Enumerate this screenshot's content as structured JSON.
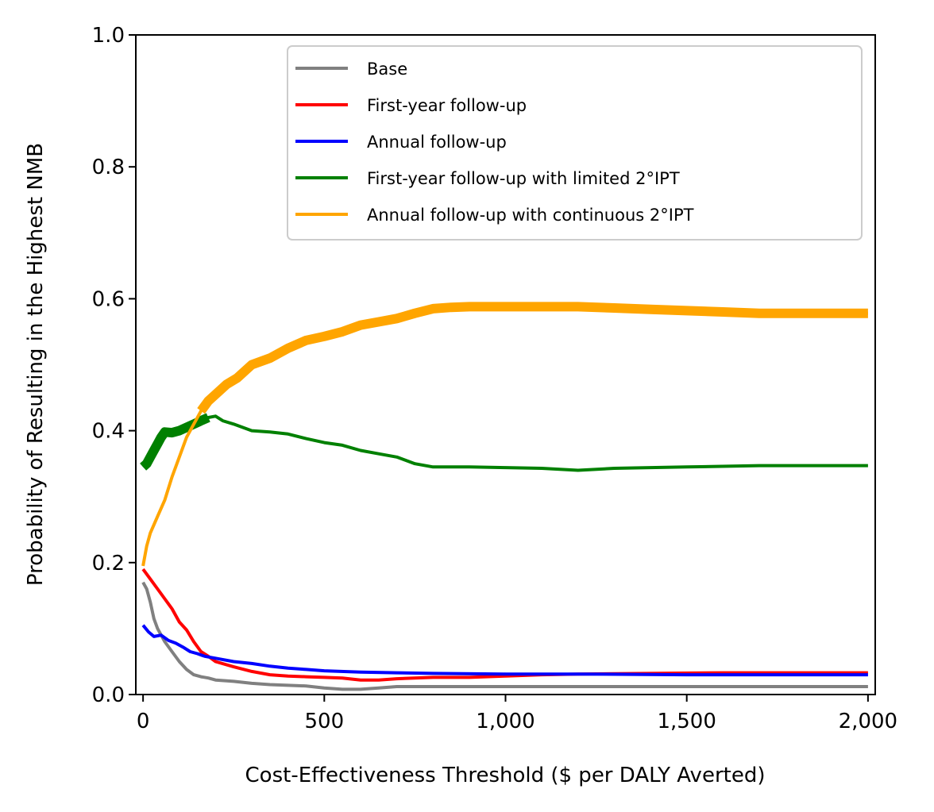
{
  "chart_data": {
    "type": "line",
    "title": "",
    "xlabel": "Cost-Effectiveness Threshold ($ per DALY Averted)",
    "ylabel": "Probability of Resulting in the Highest NMB",
    "xlim": [
      -20,
      2020
    ],
    "ylim": [
      0.0,
      1.0
    ],
    "x_ticks": [
      0,
      500,
      1000,
      1500,
      2000
    ],
    "x_tick_labels": [
      "0",
      "500",
      "1,000",
      "1,500",
      "2,000"
    ],
    "y_ticks": [
      0.0,
      0.2,
      0.4,
      0.6,
      0.8,
      1.0
    ],
    "y_tick_labels": [
      "0.0",
      "0.2",
      "0.4",
      "0.6",
      "0.8",
      "1.0"
    ],
    "grid": false,
    "legend_position": "top-right",
    "series": [
      {
        "name": "Base",
        "color": "#808080",
        "thick_in_range": [],
        "x": [
          0,
          10,
          20,
          30,
          40,
          60,
          80,
          100,
          120,
          140,
          160,
          180,
          200,
          250,
          300,
          350,
          400,
          450,
          500,
          550,
          600,
          650,
          700,
          800,
          1000,
          1200,
          1500,
          1800,
          2000
        ],
        "y": [
          0.17,
          0.16,
          0.14,
          0.115,
          0.1,
          0.08,
          0.065,
          0.05,
          0.038,
          0.03,
          0.027,
          0.025,
          0.022,
          0.02,
          0.017,
          0.015,
          0.014,
          0.013,
          0.01,
          0.008,
          0.008,
          0.01,
          0.012,
          0.012,
          0.012,
          0.012,
          0.012,
          0.012,
          0.012
        ]
      },
      {
        "name": "First-year follow-up",
        "color": "#ff0000",
        "thick_in_range": [],
        "x": [
          0,
          20,
          40,
          60,
          80,
          100,
          120,
          140,
          160,
          180,
          200,
          250,
          300,
          350,
          400,
          450,
          500,
          550,
          600,
          650,
          700,
          800,
          900,
          1000,
          1100,
          1200,
          1400,
          1600,
          1800,
          2000
        ],
        "y": [
          0.19,
          0.175,
          0.16,
          0.145,
          0.13,
          0.11,
          0.098,
          0.08,
          0.065,
          0.058,
          0.05,
          0.042,
          0.035,
          0.03,
          0.028,
          0.027,
          0.026,
          0.025,
          0.022,
          0.022,
          0.024,
          0.026,
          0.026,
          0.028,
          0.03,
          0.031,
          0.032,
          0.033,
          0.033,
          0.033
        ]
      },
      {
        "name": "Annual follow-up",
        "color": "#0000ff",
        "thick_in_range": [],
        "x": [
          0,
          15,
          30,
          50,
          70,
          90,
          110,
          130,
          150,
          170,
          200,
          250,
          300,
          350,
          400,
          450,
          500,
          600,
          700,
          800,
          1000,
          1200,
          1500,
          1800,
          2000
        ],
        "y": [
          0.105,
          0.095,
          0.088,
          0.09,
          0.082,
          0.078,
          0.072,
          0.065,
          0.062,
          0.058,
          0.055,
          0.05,
          0.047,
          0.043,
          0.04,
          0.038,
          0.036,
          0.034,
          0.033,
          0.032,
          0.031,
          0.031,
          0.03,
          0.03,
          0.03
        ]
      },
      {
        "name": "First-year follow-up with limited 2°IPT",
        "color": "#008000",
        "thick_in_range": [
          0,
          180
        ],
        "x": [
          0,
          10,
          20,
          30,
          40,
          50,
          60,
          80,
          100,
          120,
          140,
          160,
          180,
          200,
          220,
          250,
          300,
          350,
          400,
          450,
          500,
          550,
          600,
          650,
          700,
          750,
          800,
          900,
          1000,
          1100,
          1200,
          1300,
          1500,
          1700,
          2000
        ],
        "y": [
          0.345,
          0.35,
          0.36,
          0.37,
          0.38,
          0.39,
          0.398,
          0.397,
          0.4,
          0.405,
          0.41,
          0.415,
          0.42,
          0.422,
          0.415,
          0.41,
          0.4,
          0.398,
          0.395,
          0.388,
          0.382,
          0.378,
          0.37,
          0.365,
          0.36,
          0.35,
          0.345,
          0.345,
          0.344,
          0.343,
          0.34,
          0.343,
          0.345,
          0.347,
          0.347
        ]
      },
      {
        "name": "Annual follow-up with continuous 2°IPT",
        "color": "#ffa500",
        "thick_in_range": [
          160,
          2020
        ],
        "x": [
          0,
          10,
          20,
          40,
          60,
          80,
          100,
          120,
          140,
          160,
          180,
          200,
          230,
          260,
          300,
          350,
          400,
          450,
          500,
          550,
          600,
          650,
          700,
          750,
          800,
          850,
          900,
          1000,
          1100,
          1200,
          1300,
          1400,
          1500,
          1600,
          1700,
          1800,
          1900,
          2000
        ],
        "y": [
          0.195,
          0.225,
          0.245,
          0.27,
          0.295,
          0.33,
          0.36,
          0.39,
          0.41,
          0.43,
          0.445,
          0.455,
          0.47,
          0.48,
          0.5,
          0.51,
          0.525,
          0.537,
          0.543,
          0.55,
          0.56,
          0.565,
          0.57,
          0.578,
          0.585,
          0.587,
          0.588,
          0.588,
          0.588,
          0.588,
          0.586,
          0.584,
          0.582,
          0.58,
          0.578,
          0.578,
          0.578,
          0.578
        ]
      }
    ]
  }
}
